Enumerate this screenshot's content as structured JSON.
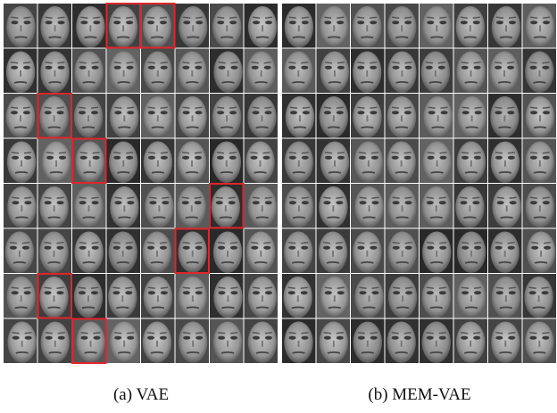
{
  "panels": [
    {
      "caption": "(a)  VAE"
    },
    {
      "caption": "(b) MEM-VAE"
    }
  ]
}
